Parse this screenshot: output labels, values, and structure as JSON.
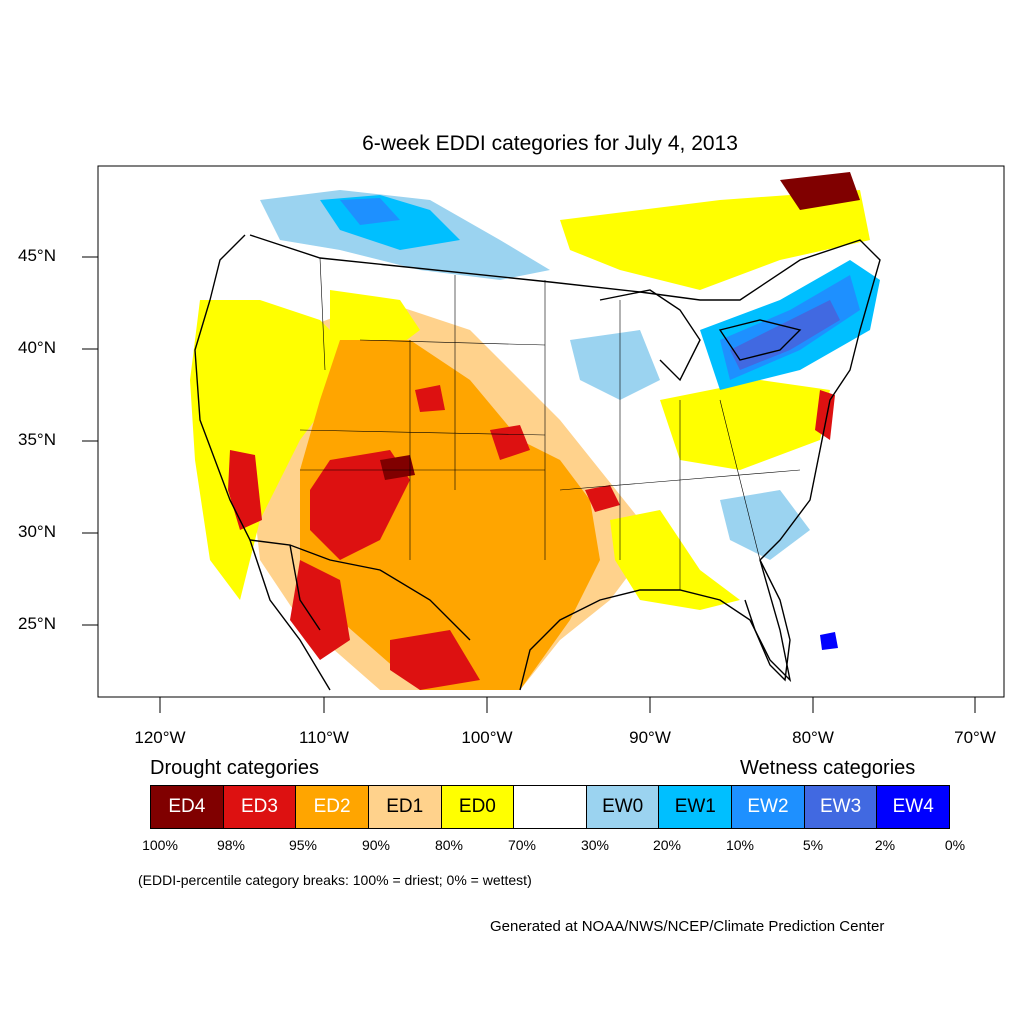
{
  "title": "6-week EDDI categories for July 4, 2013",
  "axes": {
    "lat_labels": [
      "45°N",
      "40°N",
      "35°N",
      "30°N",
      "25°N"
    ],
    "lon_labels": [
      "120°W",
      "110°W",
      "100°W",
      "90°W",
      "80°W",
      "70°W"
    ]
  },
  "legend": {
    "drought_heading": "Drought categories",
    "wetness_heading": "Wetness categories",
    "categories": [
      {
        "label": "ED4",
        "color": "#800000",
        "text_color": "#ffffff"
      },
      {
        "label": "ED3",
        "color": "#dd1111",
        "text_color": "#ffffff"
      },
      {
        "label": "ED2",
        "color": "#ffa500",
        "text_color": "#ffffff"
      },
      {
        "label": "ED1",
        "color": "#ffd28c",
        "text_color": "#000000"
      },
      {
        "label": "ED0",
        "color": "#ffff00",
        "text_color": "#000000"
      },
      {
        "label": "",
        "color": "#ffffff",
        "text_color": "#000000"
      },
      {
        "label": "EW0",
        "color": "#9bd3f0",
        "text_color": "#000000"
      },
      {
        "label": "EW1",
        "color": "#00bfff",
        "text_color": "#000000"
      },
      {
        "label": "EW2",
        "color": "#1e90ff",
        "text_color": "#ffffff"
      },
      {
        "label": "EW3",
        "color": "#4169e1",
        "text_color": "#ffffff"
      },
      {
        "label": "EW4",
        "color": "#0000ff",
        "text_color": "#ffffff"
      }
    ],
    "breaks": [
      "100%",
      "98%",
      "95%",
      "90%",
      "80%",
      "70%",
      "30%",
      "20%",
      "10%",
      "5%",
      "2%",
      "0%"
    ]
  },
  "note": "(EDDI-percentile category breaks: 100% = driest; 0% = wettest)",
  "credit": "Generated at NOAA/NWS/NCEP/Climate Prediction Center"
}
